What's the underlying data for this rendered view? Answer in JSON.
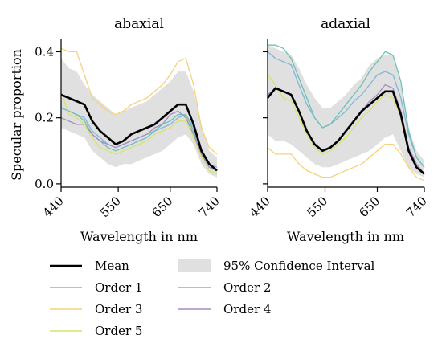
{
  "chart_data": [
    {
      "type": "line",
      "title": "abaxial",
      "xlabel": "Wavelength in nm",
      "ylabel": "Specular proportion",
      "xlim": [
        440,
        740
      ],
      "ylim": [
        -0.01,
        0.44
      ],
      "xticks": [
        "440",
        "550",
        "650",
        "740"
      ],
      "yticks": [
        "0.0",
        "0.2",
        "0.4"
      ],
      "series": [
        {
          "name": "95% Confidence Interval",
          "color": "#e0e0e0",
          "x": [
            440,
            455,
            470,
            485,
            500,
            515,
            530,
            545,
            560,
            575,
            590,
            605,
            620,
            635,
            650,
            665,
            680,
            695,
            710,
            725,
            740
          ],
          "lower": [
            0.17,
            0.16,
            0.15,
            0.14,
            0.1,
            0.08,
            0.06,
            0.05,
            0.06,
            0.06,
            0.07,
            0.08,
            0.09,
            0.1,
            0.12,
            0.14,
            0.15,
            0.12,
            0.06,
            0.03,
            0.02
          ],
          "upper": [
            0.38,
            0.35,
            0.34,
            0.3,
            0.27,
            0.25,
            0.23,
            0.21,
            0.22,
            0.23,
            0.24,
            0.25,
            0.27,
            0.29,
            0.31,
            0.34,
            0.34,
            0.28,
            0.18,
            0.1,
            0.08
          ]
        },
        {
          "name": "Order 1",
          "color": "#7fb7d9",
          "x": [
            440,
            455,
            470,
            485,
            500,
            515,
            530,
            545,
            560,
            575,
            590,
            605,
            620,
            635,
            650,
            665,
            680,
            695,
            710,
            725,
            740
          ],
          "y": [
            0.23,
            0.22,
            0.21,
            0.2,
            0.16,
            0.14,
            0.12,
            0.11,
            0.12,
            0.13,
            0.14,
            0.15,
            0.16,
            0.17,
            0.18,
            0.2,
            0.21,
            0.17,
            0.1,
            0.06,
            0.05
          ]
        },
        {
          "name": "Order 2",
          "color": "#6cc1b5",
          "x": [
            440,
            455,
            470,
            485,
            500,
            515,
            530,
            545,
            560,
            575,
            590,
            605,
            620,
            635,
            650,
            665,
            680,
            695,
            710,
            725,
            740
          ],
          "y": [
            0.23,
            0.22,
            0.21,
            0.19,
            0.15,
            0.13,
            0.11,
            0.1,
            0.11,
            0.12,
            0.13,
            0.14,
            0.16,
            0.18,
            0.19,
            0.21,
            0.21,
            0.16,
            0.09,
            0.05,
            0.04
          ]
        },
        {
          "name": "Order 3",
          "color": "#f5d27a",
          "x": [
            440,
            455,
            470,
            485,
            500,
            515,
            530,
            545,
            560,
            575,
            590,
            605,
            620,
            635,
            650,
            665,
            680,
            695,
            710,
            725,
            740
          ],
          "y": [
            0.41,
            0.4,
            0.4,
            0.33,
            0.26,
            0.24,
            0.22,
            0.21,
            0.22,
            0.24,
            0.25,
            0.26,
            0.28,
            0.3,
            0.33,
            0.37,
            0.38,
            0.3,
            0.17,
            0.11,
            0.09
          ]
        },
        {
          "name": "Order 4",
          "color": "#a78bc2",
          "x": [
            440,
            455,
            470,
            485,
            500,
            515,
            530,
            545,
            560,
            575,
            590,
            605,
            620,
            635,
            650,
            665,
            680,
            695,
            710,
            725,
            740
          ],
          "y": [
            0.2,
            0.19,
            0.18,
            0.18,
            0.15,
            0.13,
            0.12,
            0.11,
            0.12,
            0.13,
            0.14,
            0.15,
            0.17,
            0.18,
            0.21,
            0.22,
            0.2,
            0.15,
            0.09,
            0.05,
            0.04
          ]
        },
        {
          "name": "Order 5",
          "color": "#d9e36a",
          "x": [
            440,
            455,
            470,
            485,
            500,
            515,
            530,
            545,
            560,
            575,
            590,
            605,
            620,
            635,
            650,
            665,
            680,
            695,
            710,
            725,
            740
          ],
          "y": [
            0.28,
            0.21,
            0.2,
            0.18,
            0.14,
            0.11,
            0.1,
            0.09,
            0.1,
            0.11,
            0.12,
            0.13,
            0.15,
            0.16,
            0.17,
            0.19,
            0.19,
            0.14,
            0.08,
            0.04,
            0.03
          ]
        },
        {
          "name": "Mean",
          "color": "#000000",
          "x": [
            440,
            455,
            470,
            485,
            500,
            515,
            530,
            545,
            560,
            575,
            590,
            605,
            620,
            635,
            650,
            665,
            680,
            695,
            710,
            725,
            740
          ],
          "y": [
            0.27,
            0.26,
            0.25,
            0.24,
            0.19,
            0.16,
            0.14,
            0.12,
            0.13,
            0.15,
            0.16,
            0.17,
            0.18,
            0.2,
            0.22,
            0.24,
            0.24,
            0.18,
            0.1,
            0.06,
            0.04
          ]
        }
      ]
    },
    {
      "type": "line",
      "title": "adaxial",
      "xlabel": "Wavelength in nm",
      "ylabel": "",
      "xlim": [
        440,
        740
      ],
      "ylim": [
        -0.01,
        0.44
      ],
      "xticks": [
        "440",
        "550",
        "650",
        "740"
      ],
      "yticks": [
        "",
        "",
        ""
      ],
      "series": [
        {
          "name": "95% Confidence Interval",
          "color": "#e0e0e0",
          "x": [
            440,
            455,
            470,
            485,
            500,
            515,
            530,
            545,
            560,
            575,
            590,
            605,
            620,
            635,
            650,
            665,
            680,
            695,
            710,
            725,
            740
          ],
          "lower": [
            0.15,
            0.13,
            0.13,
            0.12,
            0.1,
            0.08,
            0.06,
            0.05,
            0.05,
            0.06,
            0.07,
            0.08,
            0.09,
            0.1,
            0.12,
            0.14,
            0.15,
            0.1,
            0.05,
            0.03,
            0.02
          ],
          "upper": [
            0.42,
            0.41,
            0.4,
            0.39,
            0.35,
            0.3,
            0.26,
            0.23,
            0.23,
            0.25,
            0.27,
            0.3,
            0.32,
            0.36,
            0.38,
            0.39,
            0.39,
            0.3,
            0.17,
            0.1,
            0.07
          ]
        },
        {
          "name": "Order 1",
          "color": "#7fb7d9",
          "x": [
            440,
            455,
            470,
            485,
            500,
            515,
            530,
            545,
            560,
            575,
            590,
            605,
            620,
            635,
            650,
            665,
            680,
            695,
            710,
            725,
            740
          ],
          "y": [
            0.4,
            0.38,
            0.37,
            0.36,
            0.3,
            0.24,
            0.2,
            0.17,
            0.18,
            0.2,
            0.22,
            0.25,
            0.27,
            0.3,
            0.33,
            0.34,
            0.33,
            0.26,
            0.15,
            0.08,
            0.05
          ]
        },
        {
          "name": "Order 2",
          "color": "#6cc1b5",
          "x": [
            440,
            455,
            470,
            485,
            500,
            515,
            530,
            545,
            560,
            575,
            590,
            605,
            620,
            635,
            650,
            665,
            680,
            695,
            710,
            725,
            740
          ],
          "y": [
            0.42,
            0.42,
            0.41,
            0.38,
            0.32,
            0.26,
            0.2,
            0.17,
            0.18,
            0.21,
            0.24,
            0.27,
            0.3,
            0.34,
            0.37,
            0.4,
            0.39,
            0.31,
            0.16,
            0.08,
            0.05
          ]
        },
        {
          "name": "Order 3",
          "color": "#f5d27a",
          "x": [
            440,
            455,
            470,
            485,
            500,
            515,
            530,
            545,
            560,
            575,
            590,
            605,
            620,
            635,
            650,
            665,
            680,
            695,
            710,
            725,
            740
          ],
          "y": [
            0.11,
            0.09,
            0.09,
            0.09,
            0.06,
            0.04,
            0.03,
            0.02,
            0.02,
            0.03,
            0.04,
            0.05,
            0.06,
            0.08,
            0.1,
            0.12,
            0.12,
            0.09,
            0.05,
            0.02,
            0.01
          ]
        },
        {
          "name": "Order 4",
          "color": "#a78bc2",
          "x": [
            440,
            455,
            470,
            485,
            500,
            515,
            530,
            545,
            560,
            575,
            590,
            605,
            620,
            635,
            650,
            665,
            680,
            695,
            710,
            725,
            740
          ],
          "y": [
            0.27,
            0.29,
            0.28,
            0.27,
            0.22,
            0.16,
            0.12,
            0.1,
            0.11,
            0.13,
            0.16,
            0.19,
            0.22,
            0.25,
            0.27,
            0.3,
            0.29,
            0.22,
            0.11,
            0.06,
            0.03
          ]
        },
        {
          "name": "Order 5",
          "color": "#d9e36a",
          "x": [
            440,
            455,
            470,
            485,
            500,
            515,
            530,
            545,
            560,
            575,
            590,
            605,
            620,
            635,
            650,
            665,
            680,
            695,
            710,
            725,
            740
          ],
          "y": [
            0.33,
            0.3,
            0.26,
            0.25,
            0.2,
            0.15,
            0.11,
            0.09,
            0.1,
            0.12,
            0.14,
            0.17,
            0.2,
            0.22,
            0.25,
            0.27,
            0.26,
            0.2,
            0.1,
            0.05,
            0.03
          ]
        },
        {
          "name": "Mean",
          "color": "#000000",
          "x": [
            440,
            455,
            470,
            485,
            500,
            515,
            530,
            545,
            560,
            575,
            590,
            605,
            620,
            635,
            650,
            665,
            680,
            695,
            710,
            725,
            740
          ],
          "y": [
            0.26,
            0.29,
            0.28,
            0.27,
            0.22,
            0.16,
            0.12,
            0.1,
            0.11,
            0.13,
            0.16,
            0.19,
            0.22,
            0.24,
            0.26,
            0.28,
            0.28,
            0.21,
            0.1,
            0.05,
            0.03
          ]
        }
      ]
    }
  ],
  "legend": {
    "items": [
      {
        "label": "Mean",
        "kind": "line",
        "color": "#000000"
      },
      {
        "label": "95% Confidence Interval",
        "kind": "patch",
        "color": "#e0e0e0"
      },
      {
        "label": "Order 1",
        "kind": "line",
        "color": "#7fb7d9"
      },
      {
        "label": "Order 2",
        "kind": "line",
        "color": "#6cc1b5"
      },
      {
        "label": "Order 3",
        "kind": "line",
        "color": "#f5d27a"
      },
      {
        "label": "Order 4",
        "kind": "line",
        "color": "#a78bc2"
      },
      {
        "label": "Order 5",
        "kind": "line",
        "color": "#d9e36a"
      }
    ]
  }
}
